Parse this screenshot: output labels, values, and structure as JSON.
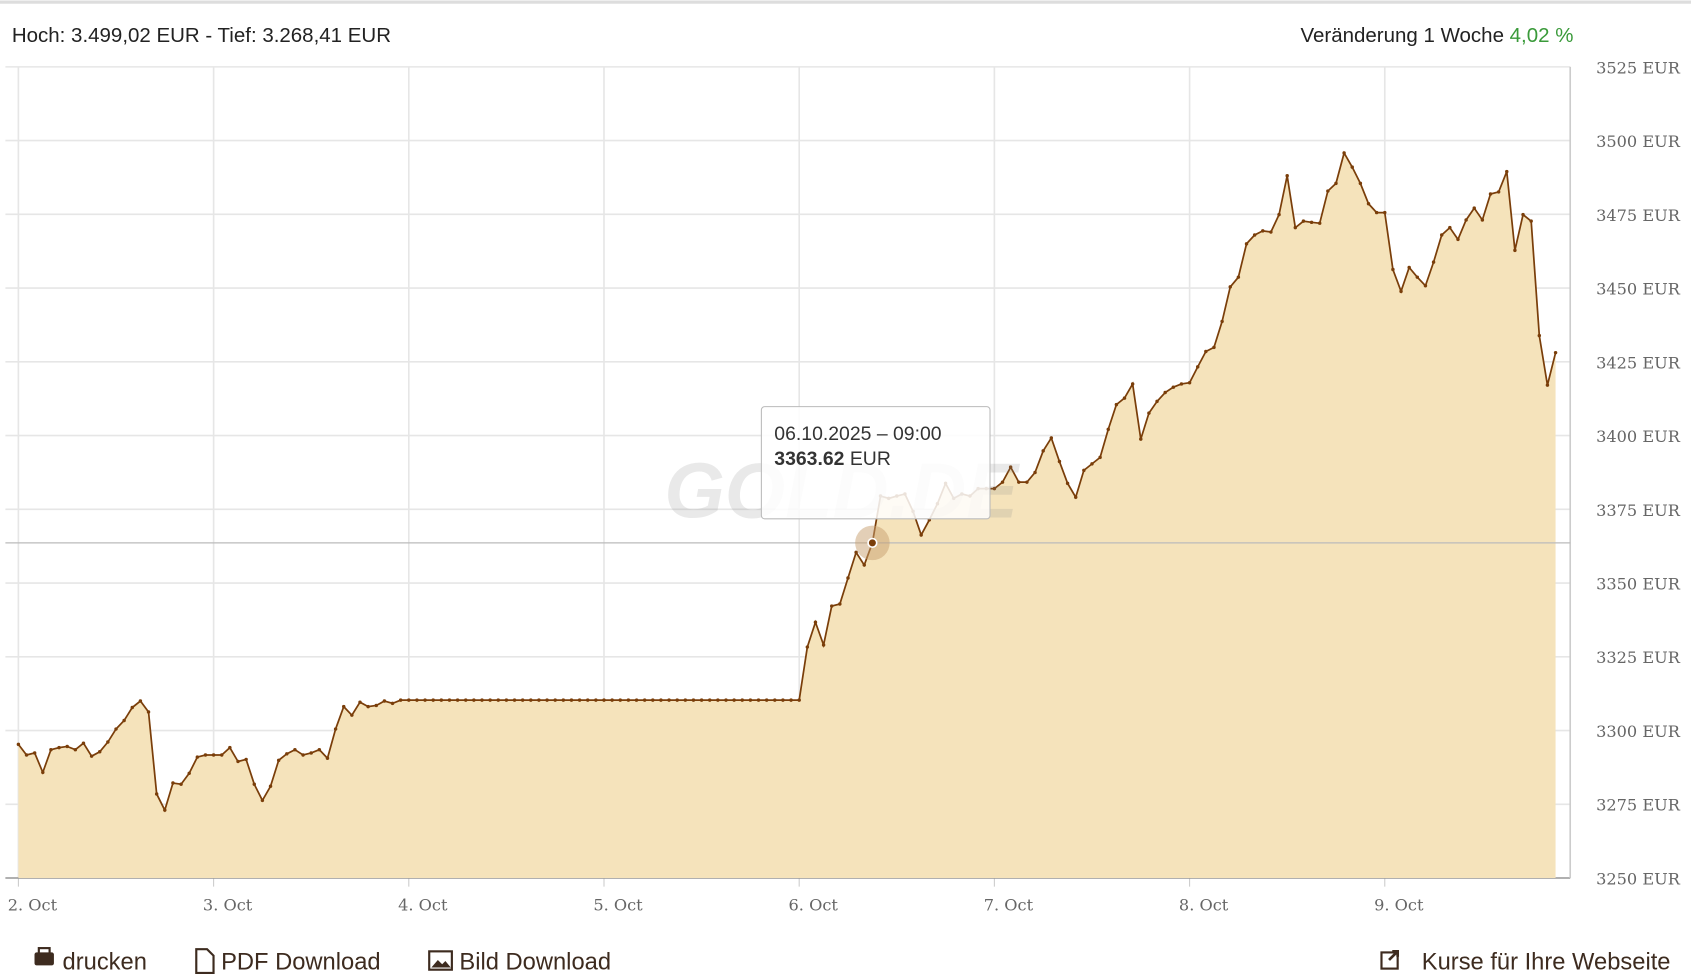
{
  "header": {
    "high_low": "Hoch: 3.499,02 EUR - Tief: 3.268,41 EUR",
    "change_label": "Veränderung 1 Woche",
    "change_value": "4,02 %"
  },
  "chart_data": {
    "type": "area",
    "watermark": "GOLD.DE",
    "tooltip_unit": "EUR",
    "x": [
      "02.10.2025 – 00:00",
      "02.10.2025 – 01:00",
      "02.10.2025 – 02:00",
      "02.10.2025 – 03:00",
      "02.10.2025 – 04:00",
      "02.10.2025 – 05:00",
      "02.10.2025 – 06:00",
      "02.10.2025 – 07:00",
      "02.10.2025 – 08:00",
      "02.10.2025 – 09:00",
      "02.10.2025 – 10:00",
      "02.10.2025 – 11:00",
      "02.10.2025 – 12:00",
      "02.10.2025 – 13:00",
      "02.10.2025 – 14:00",
      "02.10.2025 – 15:00",
      "02.10.2025 – 16:00",
      "02.10.2025 – 17:00",
      "02.10.2025 – 18:00",
      "02.10.2025 – 19:00",
      "02.10.2025 – 20:00",
      "02.10.2025 – 21:00",
      "02.10.2025 – 22:00",
      "02.10.2025 – 23:00",
      "03.10.2025 – 00:00",
      "03.10.2025 – 01:00",
      "03.10.2025 – 02:00",
      "03.10.2025 – 03:00",
      "03.10.2025 – 04:00",
      "03.10.2025 – 05:00",
      "03.10.2025 – 06:00",
      "03.10.2025 – 07:00",
      "03.10.2025 – 08:00",
      "03.10.2025 – 09:00",
      "03.10.2025 – 10:00",
      "03.10.2025 – 11:00",
      "03.10.2025 – 12:00",
      "03.10.2025 – 13:00",
      "03.10.2025 – 14:00",
      "03.10.2025 – 15:00",
      "03.10.2025 – 16:00",
      "03.10.2025 – 17:00",
      "03.10.2025 – 18:00",
      "03.10.2025 – 19:00",
      "03.10.2025 – 20:00",
      "03.10.2025 – 21:00",
      "03.10.2025 – 22:00",
      "03.10.2025 – 23:00",
      "04.10.2025 – 00:00",
      "04.10.2025 – 01:00",
      "04.10.2025 – 02:00",
      "04.10.2025 – 03:00",
      "04.10.2025 – 04:00",
      "04.10.2025 – 05:00",
      "04.10.2025 – 06:00",
      "04.10.2025 – 07:00",
      "04.10.2025 – 08:00",
      "04.10.2025 – 09:00",
      "04.10.2025 – 10:00",
      "04.10.2025 – 11:00",
      "04.10.2025 – 12:00",
      "04.10.2025 – 13:00",
      "04.10.2025 – 14:00",
      "04.10.2025 – 15:00",
      "04.10.2025 – 16:00",
      "04.10.2025 – 17:00",
      "04.10.2025 – 18:00",
      "04.10.2025 – 19:00",
      "04.10.2025 – 20:00",
      "04.10.2025 – 21:00",
      "04.10.2025 – 22:00",
      "04.10.2025 – 23:00",
      "05.10.2025 – 00:00",
      "05.10.2025 – 01:00",
      "05.10.2025 – 02:00",
      "05.10.2025 – 03:00",
      "05.10.2025 – 04:00",
      "05.10.2025 – 05:00",
      "05.10.2025 – 06:00",
      "05.10.2025 – 07:00",
      "05.10.2025 – 08:00",
      "05.10.2025 – 09:00",
      "05.10.2025 – 10:00",
      "05.10.2025 – 11:00",
      "05.10.2025 – 12:00",
      "05.10.2025 – 13:00",
      "05.10.2025 – 14:00",
      "05.10.2025 – 15:00",
      "05.10.2025 – 16:00",
      "05.10.2025 – 17:00",
      "05.10.2025 – 18:00",
      "05.10.2025 – 19:00",
      "05.10.2025 – 20:00",
      "05.10.2025 – 21:00",
      "05.10.2025 – 22:00",
      "05.10.2025 – 23:00",
      "06.10.2025 – 00:00",
      "06.10.2025 – 01:00",
      "06.10.2025 – 02:00",
      "06.10.2025 – 03:00",
      "06.10.2025 – 04:00",
      "06.10.2025 – 05:00",
      "06.10.2025 – 06:00",
      "06.10.2025 – 07:00",
      "06.10.2025 – 08:00",
      "06.10.2025 – 09:00",
      "06.10.2025 – 10:00",
      "06.10.2025 – 11:00",
      "06.10.2025 – 12:00",
      "06.10.2025 – 13:00",
      "06.10.2025 – 14:00",
      "06.10.2025 – 15:00",
      "06.10.2025 – 16:00",
      "06.10.2025 – 17:00",
      "06.10.2025 – 18:00",
      "06.10.2025 – 19:00",
      "06.10.2025 – 20:00",
      "06.10.2025 – 21:00",
      "06.10.2025 – 22:00",
      "06.10.2025 – 23:00",
      "07.10.2025 – 00:00",
      "07.10.2025 – 01:00",
      "07.10.2025 – 02:00",
      "07.10.2025 – 03:00",
      "07.10.2025 – 04:00",
      "07.10.2025 – 05:00",
      "07.10.2025 – 06:00",
      "07.10.2025 – 07:00",
      "07.10.2025 – 08:00",
      "07.10.2025 – 09:00",
      "07.10.2025 – 10:00",
      "07.10.2025 – 11:00",
      "07.10.2025 – 12:00",
      "07.10.2025 – 13:00",
      "07.10.2025 – 14:00",
      "07.10.2025 – 15:00",
      "07.10.2025 – 16:00",
      "07.10.2025 – 17:00",
      "07.10.2025 – 18:00",
      "07.10.2025 – 19:00",
      "07.10.2025 – 20:00",
      "07.10.2025 – 21:00",
      "07.10.2025 – 22:00",
      "07.10.2025 – 23:00",
      "08.10.2025 – 00:00",
      "08.10.2025 – 01:00",
      "08.10.2025 – 02:00",
      "08.10.2025 – 03:00",
      "08.10.2025 – 04:00",
      "08.10.2025 – 05:00",
      "08.10.2025 – 06:00",
      "08.10.2025 – 07:00",
      "08.10.2025 – 08:00",
      "08.10.2025 – 09:00",
      "08.10.2025 – 10:00",
      "08.10.2025 – 11:00",
      "08.10.2025 – 12:00",
      "08.10.2025 – 13:00",
      "08.10.2025 – 14:00",
      "08.10.2025 – 15:00",
      "08.10.2025 – 16:00",
      "08.10.2025 – 17:00",
      "08.10.2025 – 18:00",
      "08.10.2025 – 19:00",
      "08.10.2025 – 20:00",
      "08.10.2025 – 21:00",
      "08.10.2025 – 22:00",
      "08.10.2025 – 23:00",
      "09.10.2025 – 00:00",
      "09.10.2025 – 01:00",
      "09.10.2025 – 02:00",
      "09.10.2025 – 03:00",
      "09.10.2025 – 04:00",
      "09.10.2025 – 05:00",
      "09.10.2025 – 06:00",
      "09.10.2025 – 07:00",
      "09.10.2025 – 08:00",
      "09.10.2025 – 09:00",
      "09.10.2025 – 10:00",
      "09.10.2025 – 11:00",
      "09.10.2025 – 12:00",
      "09.10.2025 – 13:00",
      "09.10.2025 – 14:00",
      "09.10.2025 – 15:00",
      "09.10.2025 – 16:00",
      "09.10.2025 – 17:00",
      "09.10.2025 – 18:00",
      "09.10.2025 – 19:00",
      "09.10.2025 – 20:00",
      "09.10.2025 – 21:00"
    ],
    "series": [
      {
        "color": "#7a3e0a",
        "fill": "#f5e3bb",
        "values": [
          3295.3,
          3291.7,
          3292.4,
          3285.8,
          3293.5,
          3294.2,
          3294.6,
          3293.5,
          3295.7,
          3291.3,
          3292.8,
          3296.1,
          3300.5,
          3303.4,
          3307.8,
          3310.0,
          3306.3,
          3278.5,
          3273.0,
          3282.2,
          3281.8,
          3285.5,
          3291.0,
          3291.7,
          3291.7,
          3291.7,
          3294.2,
          3289.5,
          3290.2,
          3281.8,
          3276.3,
          3281.1,
          3289.9,
          3292.1,
          3293.5,
          3291.7,
          3292.4,
          3293.5,
          3290.6,
          3300.5,
          3308.1,
          3305.2,
          3309.6,
          3308.1,
          3308.5,
          3310.0,
          3309.2,
          3310.3,
          3310.3,
          3310.3,
          3310.3,
          3310.3,
          3310.3,
          3310.3,
          3310.3,
          3310.3,
          3310.3,
          3310.3,
          3310.3,
          3310.3,
          3310.3,
          3310.3,
          3310.3,
          3310.3,
          3310.3,
          3310.3,
          3310.3,
          3310.3,
          3310.3,
          3310.3,
          3310.3,
          3310.3,
          3310.3,
          3310.3,
          3310.3,
          3310.3,
          3310.3,
          3310.3,
          3310.3,
          3310.3,
          3310.3,
          3310.3,
          3310.3,
          3310.3,
          3310.3,
          3310.3,
          3310.3,
          3310.3,
          3310.3,
          3310.3,
          3310.3,
          3310.3,
          3310.3,
          3310.3,
          3310.3,
          3310.3,
          3310.3,
          3328.3,
          3336.7,
          3329.0,
          3342.2,
          3342.9,
          3351.7,
          3360.4,
          3356.1,
          3363.62,
          3379.5,
          3378.7,
          3379.5,
          3380.2,
          3374.3,
          3366.3,
          3371.4,
          3376.9,
          3383.8,
          3378.7,
          3380.2,
          3379.5,
          3382.0,
          3382.0,
          3382.0,
          3384.2,
          3389.3,
          3384.2,
          3384.2,
          3387.5,
          3394.8,
          3399.2,
          3391.2,
          3383.8,
          3379.1,
          3388.2,
          3390.4,
          3392.6,
          3402.1,
          3410.5,
          3412.7,
          3417.5,
          3398.8,
          3407.6,
          3411.6,
          3414.6,
          3416.4,
          3417.5,
          3417.9,
          3423.3,
          3428.5,
          3429.9,
          3438.7,
          3450.4,
          3453.7,
          3465.0,
          3468.0,
          3469.4,
          3469.0,
          3474.9,
          3488.1,
          3470.5,
          3472.7,
          3472.3,
          3472.0,
          3482.9,
          3485.5,
          3495.8,
          3491.0,
          3485.5,
          3478.6,
          3475.6,
          3475.6,
          3456.3,
          3448.9,
          3457.0,
          3453.7,
          3450.8,
          3458.8,
          3468.0,
          3470.5,
          3466.5,
          3473.1,
          3477.1,
          3473.1,
          3481.9,
          3482.6,
          3489.5,
          3462.8,
          3474.9,
          3472.7,
          3433.9,
          3417.1,
          3428.1
        ]
      }
    ],
    "xlim": [
      "01.10.2025 – 22:24",
      "09.10.2025 – 22:48"
    ],
    "xticks": [
      {
        "value": "02.10.2025 – 00:00",
        "label": "2. Oct"
      },
      {
        "value": "03.10.2025 – 00:00",
        "label": "3. Oct"
      },
      {
        "value": "04.10.2025 – 00:00",
        "label": "4. Oct"
      },
      {
        "value": "05.10.2025 – 00:00",
        "label": "5. Oct"
      },
      {
        "value": "06.10.2025 – 00:00",
        "label": "6. Oct"
      },
      {
        "value": "07.10.2025 – 00:00",
        "label": "7. Oct"
      },
      {
        "value": "08.10.2025 – 00:00",
        "label": "8. Oct"
      },
      {
        "value": "09.10.2025 – 00:00",
        "label": "9. Oct"
      }
    ],
    "ylim": [
      3250,
      3525
    ],
    "yticks": [
      {
        "value": 3250,
        "label": "3250 EUR"
      },
      {
        "value": 3275,
        "label": "3275 EUR"
      },
      {
        "value": 3300,
        "label": "3300 EUR"
      },
      {
        "value": 3325,
        "label": "3325 EUR"
      },
      {
        "value": 3350,
        "label": "3350 EUR"
      },
      {
        "value": 3375,
        "label": "3375 EUR"
      },
      {
        "value": 3400,
        "label": "3400 EUR"
      },
      {
        "value": 3425,
        "label": "3425 EUR"
      },
      {
        "value": 3450,
        "label": "3450 EUR"
      },
      {
        "value": 3475,
        "label": "3475 EUR"
      },
      {
        "value": 3500,
        "label": "3500 EUR"
      },
      {
        "value": 3525,
        "label": "3525 EUR"
      }
    ],
    "grid": true
  },
  "footer": {
    "print": "drucken",
    "pdf": "PDF Download",
    "image": "Bild Download",
    "embed": "Kurse für Ihre Webseite"
  }
}
